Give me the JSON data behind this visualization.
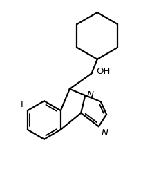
{
  "bg": "#ffffff",
  "lc": "#000000",
  "lw": 1.6,
  "fs": 9.5,
  "label_F": "F",
  "label_OH": "OH",
  "label_N1": "N",
  "label_N2": "N",
  "xlim": [
    0,
    10
  ],
  "ylim": [
    0,
    13
  ]
}
